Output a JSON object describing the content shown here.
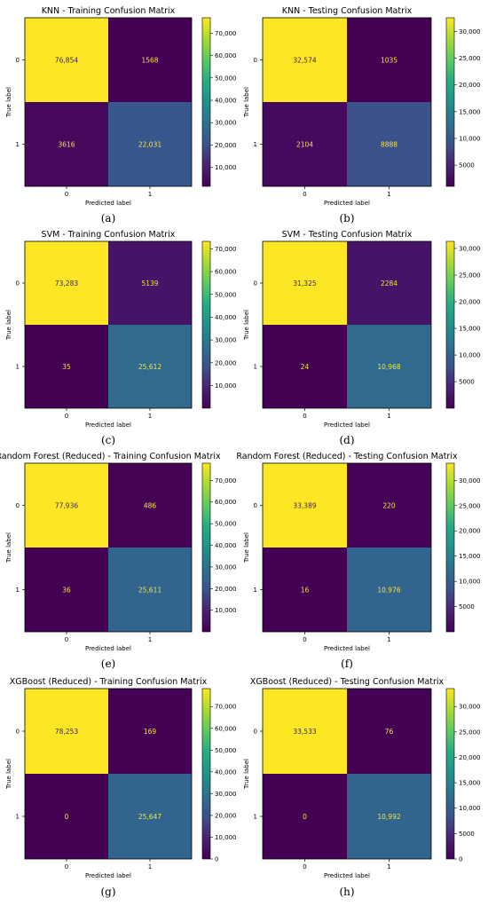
{
  "chart_data": [
    {
      "type": "heatmap",
      "title": "KNN - Training Confusion Matrix",
      "xlabel": "Predicted label",
      "ylabel": "True label",
      "x_ticks": [
        "0",
        "1"
      ],
      "y_ticks": [
        "0",
        "1"
      ],
      "values": [
        [
          76854,
          1568
        ],
        [
          3616,
          22031
        ]
      ],
      "labels": [
        [
          "76,854",
          "1568"
        ],
        [
          "3616",
          "22,031"
        ]
      ],
      "colorbar_ticks": [
        "10,000",
        "20,000",
        "30,000",
        "40,000",
        "50,000",
        "60,000",
        "70,000"
      ],
      "colorbar_tick_values": [
        10000,
        20000,
        30000,
        40000,
        50000,
        60000,
        70000
      ],
      "colorbar_range": [
        1568,
        76854
      ],
      "colormap": "viridis",
      "caption": "(a)"
    },
    {
      "type": "heatmap",
      "title": "KNN - Testing Confusion Matrix",
      "xlabel": "Predicted label",
      "ylabel": "True label",
      "x_ticks": [
        "0",
        "1"
      ],
      "y_ticks": [
        "0",
        "1"
      ],
      "values": [
        [
          32574,
          1035
        ],
        [
          2104,
          8888
        ]
      ],
      "labels": [
        [
          "32,574",
          "1035"
        ],
        [
          "2104",
          "8888"
        ]
      ],
      "colorbar_ticks": [
        "5000",
        "10,000",
        "15,000",
        "20,000",
        "25,000",
        "30,000"
      ],
      "colorbar_tick_values": [
        5000,
        10000,
        15000,
        20000,
        25000,
        30000
      ],
      "colorbar_range": [
        1035,
        32574
      ],
      "colormap": "viridis",
      "caption": "(b)"
    },
    {
      "type": "heatmap",
      "title": "SVM - Training Confusion Matrix",
      "xlabel": "Predicted label",
      "ylabel": "True label",
      "x_ticks": [
        "0",
        "1"
      ],
      "y_ticks": [
        "0",
        "1"
      ],
      "values": [
        [
          73283,
          5139
        ],
        [
          35,
          25612
        ]
      ],
      "labels": [
        [
          "73,283",
          "5139"
        ],
        [
          "35",
          "25,612"
        ]
      ],
      "colorbar_ticks": [
        "10,000",
        "20,000",
        "30,000",
        "40,000",
        "50,000",
        "60,000",
        "70,000"
      ],
      "colorbar_tick_values": [
        10000,
        20000,
        30000,
        40000,
        50000,
        60000,
        70000
      ],
      "colorbar_range": [
        35,
        73283
      ],
      "colormap": "viridis",
      "caption": "(c)"
    },
    {
      "type": "heatmap",
      "title": "SVM - Testing Confusion Matrix",
      "xlabel": "Predicted label",
      "ylabel": "True label",
      "x_ticks": [
        "0",
        "1"
      ],
      "y_ticks": [
        "0",
        "1"
      ],
      "values": [
        [
          31325,
          2284
        ],
        [
          24,
          10968
        ]
      ],
      "labels": [
        [
          "31,325",
          "2284"
        ],
        [
          "24",
          "10,968"
        ]
      ],
      "colorbar_ticks": [
        "5000",
        "10,000",
        "15,000",
        "20,000",
        "25,000",
        "30,000"
      ],
      "colorbar_tick_values": [
        5000,
        10000,
        15000,
        20000,
        25000,
        30000
      ],
      "colorbar_range": [
        24,
        31325
      ],
      "colormap": "viridis",
      "caption": "(d)"
    },
    {
      "type": "heatmap",
      "title": "Random Forest (Reduced) - Training Confusion Matrix",
      "xlabel": "Predicted label",
      "ylabel": "True label",
      "x_ticks": [
        "0",
        "1"
      ],
      "y_ticks": [
        "0",
        "1"
      ],
      "values": [
        [
          77936,
          486
        ],
        [
          36,
          25611
        ]
      ],
      "labels": [
        [
          "77,936",
          "486"
        ],
        [
          "36",
          "25,611"
        ]
      ],
      "colorbar_ticks": [
        "10,000",
        "20,000",
        "30,000",
        "40,000",
        "50,000",
        "60,000",
        "70,000"
      ],
      "colorbar_tick_values": [
        10000,
        20000,
        30000,
        40000,
        50000,
        60000,
        70000
      ],
      "colorbar_range": [
        36,
        77936
      ],
      "colormap": "viridis",
      "caption": "(e)"
    },
    {
      "type": "heatmap",
      "title": "Random Forest (Reduced) - Testing Confusion Matrix",
      "xlabel": "Predicted label",
      "ylabel": "True label",
      "x_ticks": [
        "0",
        "1"
      ],
      "y_ticks": [
        "0",
        "1"
      ],
      "values": [
        [
          33389,
          220
        ],
        [
          16,
          10976
        ]
      ],
      "labels": [
        [
          "33,389",
          "220"
        ],
        [
          "16",
          "10,976"
        ]
      ],
      "colorbar_ticks": [
        "5000",
        "10,000",
        "15,000",
        "20,000",
        "25,000",
        "30,000"
      ],
      "colorbar_tick_values": [
        5000,
        10000,
        15000,
        20000,
        25000,
        30000
      ],
      "colorbar_range": [
        16,
        33389
      ],
      "colormap": "viridis",
      "caption": "(f)"
    },
    {
      "type": "heatmap",
      "title": "XGBoost (Reduced) - Training Confusion Matrix",
      "xlabel": "Predicted label",
      "ylabel": "True label",
      "x_ticks": [
        "0",
        "1"
      ],
      "y_ticks": [
        "0",
        "1"
      ],
      "values": [
        [
          78253,
          169
        ],
        [
          0,
          25647
        ]
      ],
      "labels": [
        [
          "78,253",
          "169"
        ],
        [
          "0",
          "25,647"
        ]
      ],
      "colorbar_ticks": [
        "0",
        "10,000",
        "20,000",
        "30,000",
        "40,000",
        "50,000",
        "60,000",
        "70,000"
      ],
      "colorbar_tick_values": [
        0,
        10000,
        20000,
        30000,
        40000,
        50000,
        60000,
        70000
      ],
      "colorbar_range": [
        0,
        78253
      ],
      "colormap": "viridis",
      "caption": "(g)"
    },
    {
      "type": "heatmap",
      "title": "XGBoost (Reduced) - Testing Confusion Matrix",
      "xlabel": "Predicted label",
      "ylabel": "True label",
      "x_ticks": [
        "0",
        "1"
      ],
      "y_ticks": [
        "0",
        "1"
      ],
      "values": [
        [
          33533,
          76
        ],
        [
          0,
          10992
        ]
      ],
      "labels": [
        [
          "33,533",
          "76"
        ],
        [
          "0",
          "10,992"
        ]
      ],
      "colorbar_ticks": [
        "0",
        "5000",
        "10,000",
        "15,000",
        "20,000",
        "25,000",
        "30,000"
      ],
      "colorbar_tick_values": [
        0,
        5000,
        10000,
        15000,
        20000,
        25000,
        30000
      ],
      "colorbar_range": [
        0,
        33533
      ],
      "colormap": "viridis",
      "caption": "(h)"
    }
  ]
}
